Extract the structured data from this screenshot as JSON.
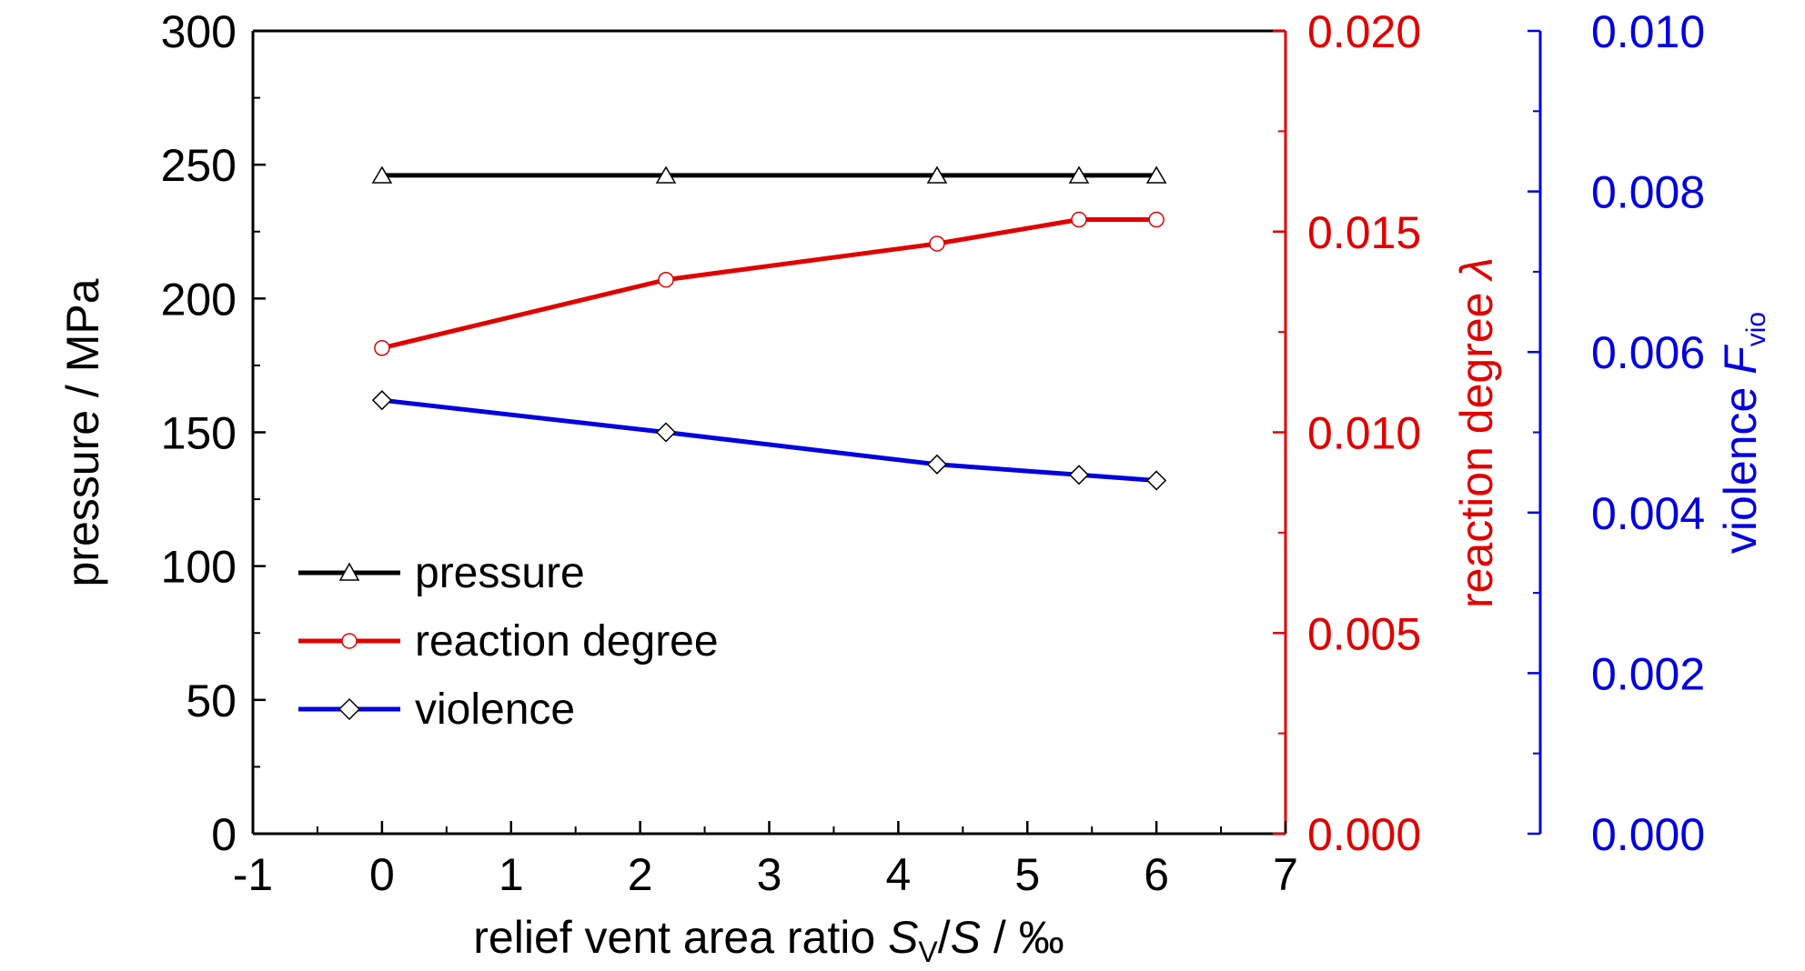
{
  "chart_data": {
    "type": "line",
    "x": [
      0,
      2.2,
      4.3,
      5.4,
      6
    ],
    "xlabel": {
      "prefix": "relief vent area ratio ",
      "sym1": "S",
      "sub1": "V",
      "mid": "/",
      "sym2": "S",
      "suffix": " / ‰"
    },
    "xlim": [
      -1,
      7
    ],
    "xticks": [
      "-1",
      "0",
      "1",
      "2",
      "3",
      "4",
      "5",
      "6",
      "7"
    ],
    "axes": {
      "left": {
        "label": "pressure / MPa",
        "ylim": [
          0,
          300
        ],
        "ticks": [
          "0",
          "50",
          "100",
          "150",
          "200",
          "250",
          "300"
        ],
        "color": "#000000"
      },
      "right1": {
        "label_prefix": "reaction degree ",
        "label_symbol": "λ",
        "ylim": [
          0,
          0.02
        ],
        "ticks": [
          "0.000",
          "0.005",
          "0.010",
          "0.015",
          "0.020"
        ],
        "color": "#e00000"
      },
      "right2": {
        "label_prefix": "violence ",
        "label_symbol": "F",
        "label_sub": "vio",
        "ylim": [
          0,
          0.01
        ],
        "ticks": [
          "0.000",
          "0.002",
          "0.004",
          "0.006",
          "0.008",
          "0.010"
        ],
        "color": "#0000e0"
      }
    },
    "series": [
      {
        "name": "pressure",
        "axis": "left",
        "marker": "triangle",
        "color": "#000000",
        "values": [
          246,
          246,
          246,
          246,
          246
        ]
      },
      {
        "name": "reaction degree",
        "axis": "right1",
        "marker": "circle",
        "color": "#e00000",
        "values": [
          0.0121,
          0.0138,
          0.0147,
          0.0153,
          0.0153
        ]
      },
      {
        "name": "violence",
        "axis": "right2",
        "marker": "diamond",
        "color": "#0000e0",
        "values": [
          0.0054,
          0.005,
          0.0046,
          0.00447,
          0.0044
        ]
      }
    ],
    "legend": {
      "placement": "lower-left"
    },
    "grid": false
  }
}
